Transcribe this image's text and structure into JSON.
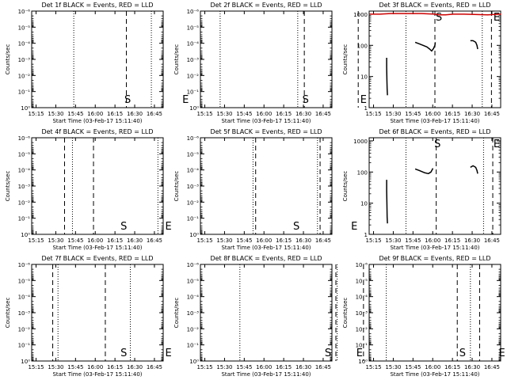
{
  "colors": {
    "events": "#000000",
    "lld": "#cc0000",
    "background": "#ffffff"
  },
  "shared": {
    "xlabel": "Start Time (03-Feb-17 15:11:40)",
    "ylabel": "Counts/sec",
    "xticks": [
      "15:15",
      "15:30",
      "15:45",
      "16:00",
      "16:15",
      "16:30",
      "16:45"
    ],
    "xtick_minutes": [
      3.333,
      18.333,
      33.333,
      48.333,
      63.333,
      78.333,
      93.333
    ],
    "xlim_minutes": [
      0,
      100
    ]
  },
  "chart_data": [
    {
      "type": "line",
      "title": "Det 1f BLACK = Events, RED = LLD",
      "yscale": "log",
      "yticks": [
        "10⁻⁶",
        "10⁻⁵",
        "10⁻⁴",
        "10⁻³",
        "10⁻²",
        "10⁻¹",
        "10⁰"
      ],
      "ytick_exps": [
        -6,
        -5,
        -4,
        -3,
        -2,
        -1,
        0
      ],
      "ylim_exp": [
        0,
        -6
      ],
      "dotted": [
        32,
        91
      ],
      "dashed": [
        0,
        72
      ],
      "S_time": 73,
      "E_time": 117,
      "series": []
    },
    {
      "type": "line",
      "title": "Det 2f BLACK = Events, RED = LLD",
      "yscale": "log",
      "yticks": [
        "10⁻⁶",
        "10⁻⁵",
        "10⁻⁴",
        "10⁻³",
        "10⁻²",
        "10⁻¹",
        "10⁰"
      ],
      "ytick_exps": [
        -6,
        -5,
        -4,
        -3,
        -2,
        -1,
        0
      ],
      "ylim_exp": [
        0,
        -6
      ],
      "dotted": [
        15,
        74
      ],
      "dashed": [
        79,
        120
      ],
      "S_time": 80,
      "E_time": 124,
      "series": []
    },
    {
      "type": "line",
      "title": "Det 3f BLACK = Events, RED = LLD",
      "yscale": "log",
      "yticks": [
        "1000",
        "100",
        "10",
        "1"
      ],
      "ytick_exps": [
        3,
        2,
        1,
        0
      ],
      "ylim_exp": [
        0,
        3.1
      ],
      "dotted": [
        28,
        86
      ],
      "dashed": [
        50,
        93
      ],
      "S_time": 53,
      "E_time": 97,
      "series": [
        {
          "color": "lld",
          "segments": [
            [
              [
                0,
                3.0
              ],
              [
                8,
                3.0
              ],
              [
                16,
                3.02
              ],
              [
                28,
                3.02
              ],
              [
                40,
                3.02
              ],
              [
                50,
                3.0
              ],
              [
                53,
                2.98
              ],
              [
                58,
                2.98
              ],
              [
                64,
                3.0
              ],
              [
                72,
                3.0
              ],
              [
                80,
                2.99
              ],
              [
                90,
                2.98
              ],
              [
                100,
                3.0
              ]
            ]
          ]
        },
        {
          "color": "events",
          "segments": [
            [
              [
                13.3,
                1.6
              ],
              [
                13.3,
                1.3
              ],
              [
                13.5,
                0.9
              ],
              [
                13.7,
                0.6
              ],
              [
                13.9,
                0.4
              ]
            ],
            [
              [
                35,
                2.1
              ],
              [
                38,
                2.05
              ],
              [
                41,
                2.0
              ],
              [
                44,
                1.95
              ],
              [
                46,
                1.88
              ],
              [
                47.5,
                1.82
              ],
              [
                49,
                1.9
              ],
              [
                50,
                2.0
              ],
              [
                50.3,
                2.1
              ]
            ],
            [
              [
                77,
                2.15
              ],
              [
                79,
                2.15
              ],
              [
                81,
                2.1
              ],
              [
                82,
                2.0
              ],
              [
                82.5,
                1.88
              ]
            ]
          ]
        }
      ]
    },
    {
      "type": "line",
      "title": "Det 4f BLACK = Events, RED = LLD",
      "yscale": "log",
      "yticks": [
        "10⁻⁶",
        "10⁻⁵",
        "10⁻⁴",
        "10⁻³",
        "10⁻²",
        "10⁻¹",
        "10⁰"
      ],
      "ytick_exps": [
        -6,
        -5,
        -4,
        -3,
        -2,
        -1,
        0
      ],
      "ylim_exp": [
        0,
        -6
      ],
      "dotted": [
        31,
        96
      ],
      "dashed": [
        25,
        47
      ],
      "S_time": 70,
      "E_time": 104,
      "series": []
    },
    {
      "type": "line",
      "title": "Det 5f BLACK = Events, RED = LLD",
      "yscale": "log",
      "yticks": [
        "10⁻⁶",
        "10⁻⁵",
        "10⁻⁴",
        "10⁻³",
        "10⁻²",
        "10⁻¹",
        "10⁰"
      ],
      "ytick_exps": [
        -6,
        -5,
        -4,
        -3,
        -2,
        -1,
        0
      ],
      "ylim_exp": [
        0,
        -6
      ],
      "dotted": [
        40,
        89
      ],
      "dashed": [
        42,
        91
      ],
      "S_time": 73,
      "E_time": 117,
      "series": []
    },
    {
      "type": "line",
      "title": "Det 6f BLACK = Events, RED = LLD",
      "yscale": "log",
      "yticks": [
        "1000",
        "100",
        "10",
        "1"
      ],
      "ytick_exps": [
        3,
        2,
        1,
        0
      ],
      "ylim_exp": [
        0,
        3.1
      ],
      "dotted": [
        28,
        87
      ],
      "dashed": [
        51,
        94
      ],
      "S_time": 52,
      "E_time": 97,
      "series": [
        {
          "color": "events",
          "segments": [
            [
              [
                13.3,
                1.75
              ],
              [
                13.3,
                1.4
              ],
              [
                13.5,
                1.0
              ],
              [
                13.7,
                0.55
              ],
              [
                13.9,
                0.35
              ]
            ],
            [
              [
                35,
                2.1
              ],
              [
                38,
                2.05
              ],
              [
                42,
                1.98
              ],
              [
                45,
                1.95
              ],
              [
                47,
                2.0
              ],
              [
                48.5,
                2.12
              ]
            ],
            [
              [
                77,
                2.15
              ],
              [
                79,
                2.2
              ],
              [
                81,
                2.15
              ],
              [
                82,
                2.05
              ],
              [
                82.5,
                1.95
              ]
            ]
          ]
        }
      ]
    },
    {
      "type": "line",
      "title": "Det 7f BLACK = Events, RED = LLD",
      "yscale": "log",
      "yticks": [
        "10⁻⁶",
        "10⁻⁵",
        "10⁻⁴",
        "10⁻³",
        "10⁻²",
        "10⁻¹",
        "10⁰"
      ],
      "ytick_exps": [
        -6,
        -5,
        -4,
        -3,
        -2,
        -1,
        0
      ],
      "ylim_exp": [
        0,
        -6
      ],
      "dotted": [
        20,
        75
      ],
      "dashed": [
        16,
        56
      ],
      "S_time": 70,
      "E_time": 104,
      "series": []
    },
    {
      "type": "line",
      "title": "Det 8f BLACK = Events, RED = LLD",
      "yscale": "log",
      "yticks": [
        "10⁻⁶",
        "10⁻⁵",
        "10⁻⁴",
        "10⁻³",
        "10⁻²",
        "10⁻¹",
        "10⁰"
      ],
      "ytick_exps": [
        -6,
        -5,
        -4,
        -3,
        -2,
        -1,
        0
      ],
      "ylim_exp": [
        0,
        -6
      ],
      "dotted": [
        30,
        104
      ],
      "dashed": [
        103,
        124
      ],
      "S_time": 97,
      "E_time": 121,
      "series": []
    },
    {
      "type": "line",
      "title": "Det 9f BLACK = Events, RED = LLD",
      "yscale": "log",
      "yticks": [
        "10⁻⁶",
        "10⁻⁵",
        "10⁻⁴",
        "10⁻³",
        "10⁻²",
        "10⁻¹",
        "10⁰"
      ],
      "ytick_exps": [
        -6,
        -5,
        -4,
        -3,
        -2,
        -1,
        0
      ],
      "ylim_exp": [
        0,
        -6
      ],
      "dotted": [
        13,
        77
      ],
      "dashed": [
        67,
        84
      ],
      "S_time": 71,
      "E_time": 101,
      "series": []
    }
  ]
}
